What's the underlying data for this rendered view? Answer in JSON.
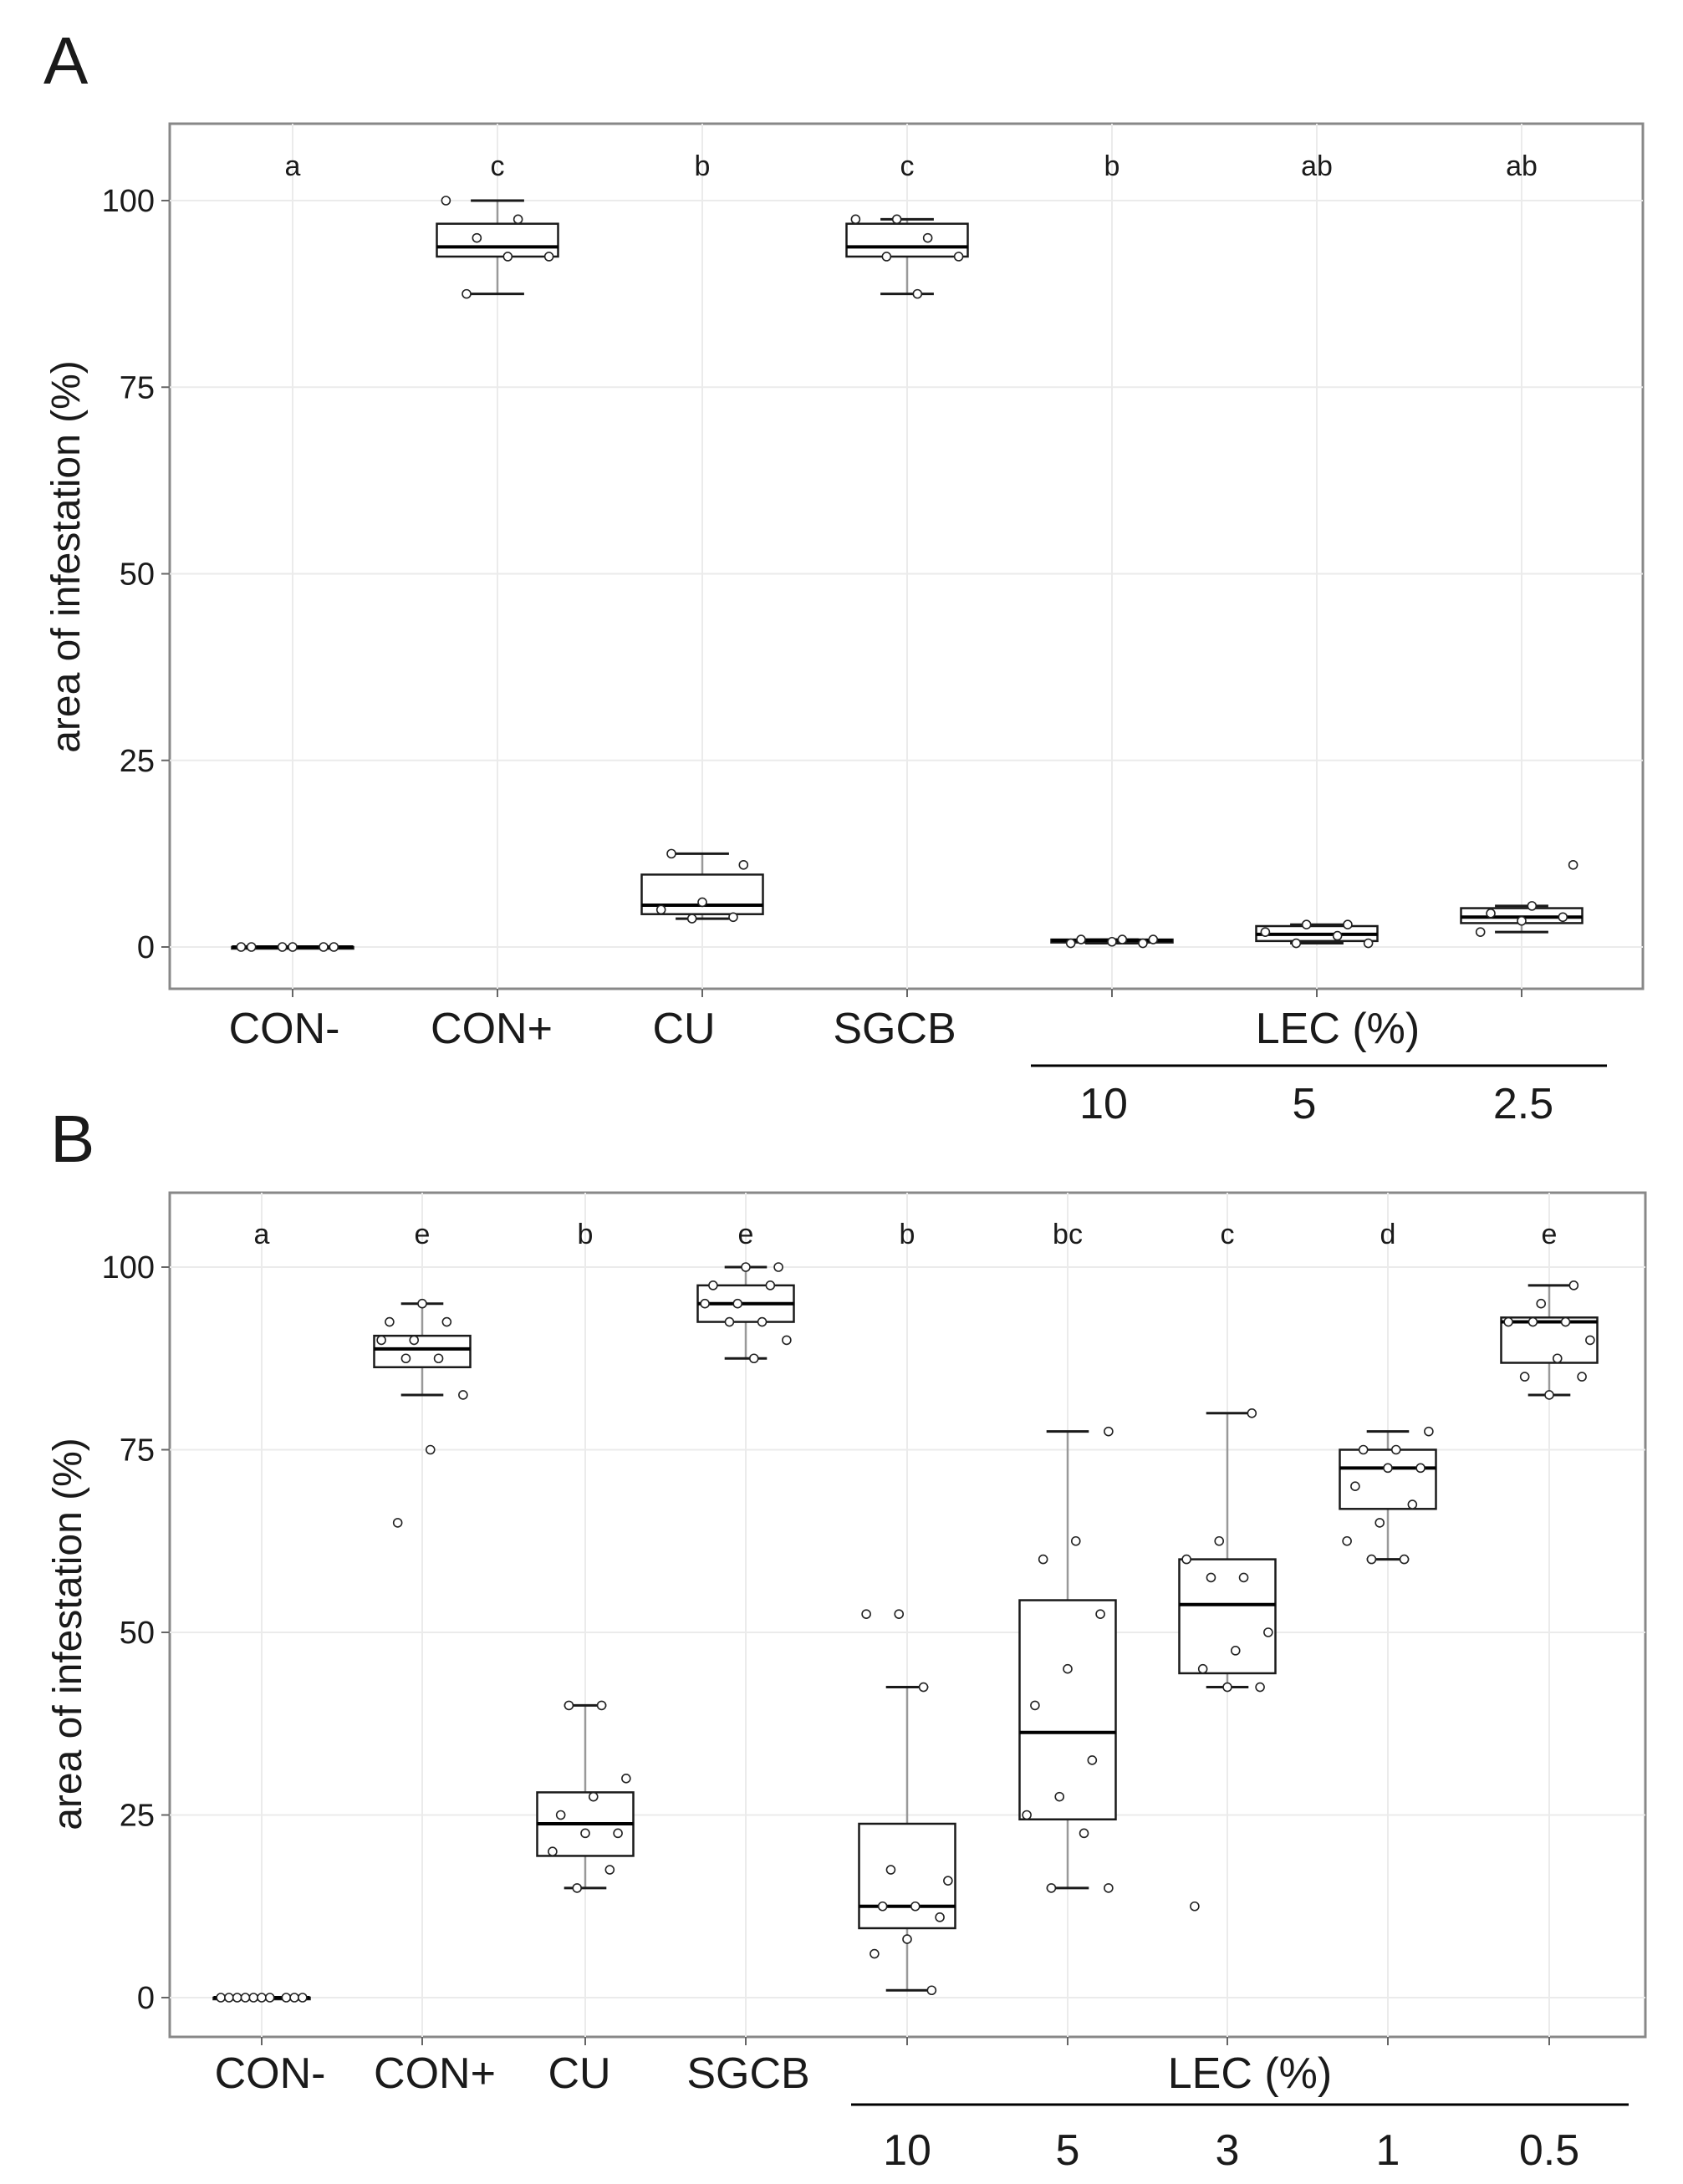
{
  "chart_data": [
    {
      "panel": "A",
      "type": "box",
      "ylabel": "area of infestation (%)",
      "ylim": [
        -5,
        110
      ],
      "yticks": [
        0,
        25,
        50,
        75,
        100
      ],
      "grid": true,
      "categories": [
        "CON-",
        "CON+",
        "CU",
        "SGCB",
        "10",
        "5",
        "2.5"
      ],
      "group_label": "LEC (%)",
      "group_members": [
        "10",
        "5",
        "2.5"
      ],
      "significance": [
        "a",
        "c",
        "b",
        "c",
        "b",
        "ab",
        "ab"
      ],
      "series": [
        {
          "name": "CON-",
          "whisker_low": 0,
          "q1": 0,
          "median": 0,
          "q3": 0,
          "whisker_high": 0,
          "points": [
            0,
            0,
            0,
            0,
            0,
            0
          ]
        },
        {
          "name": "CON+",
          "whisker_low": 87.5,
          "q1": 92.5,
          "median": 93.8,
          "q3": 96.9,
          "whisker_high": 100,
          "points": [
            87.5,
            92.5,
            92.5,
            95,
            97.5,
            100
          ]
        },
        {
          "name": "CU",
          "whisker_low": 3.8,
          "q1": 4.4,
          "median": 5.6,
          "q3": 9.7,
          "whisker_high": 12.5,
          "points": [
            3.8,
            4,
            5,
            6,
            11,
            12.5
          ]
        },
        {
          "name": "SGCB",
          "whisker_low": 87.5,
          "q1": 92.5,
          "median": 93.8,
          "q3": 96.9,
          "whisker_high": 97.5,
          "points": [
            87.5,
            92.5,
            92.5,
            95,
            97.5,
            97.5
          ]
        },
        {
          "name": "LEC 10",
          "whisker_low": 0.5,
          "q1": 0.6,
          "median": 0.9,
          "q3": 1,
          "whisker_high": 1,
          "points": [
            0.5,
            0.5,
            0.7,
            1,
            1,
            1
          ]
        },
        {
          "name": "LEC 5",
          "whisker_low": 0.5,
          "q1": 0.8,
          "median": 1.7,
          "q3": 2.8,
          "whisker_high": 3,
          "points": [
            0.5,
            0.5,
            1.5,
            2,
            3,
            3
          ]
        },
        {
          "name": "LEC 2.5",
          "whisker_low": 2,
          "q1": 3.2,
          "median": 4,
          "q3": 5.2,
          "whisker_high": 5.5,
          "points": [
            2,
            3.5,
            4,
            4.5,
            5.5,
            11
          ]
        }
      ]
    },
    {
      "panel": "B",
      "type": "box",
      "ylabel": "area of infestation (%)",
      "ylim": [
        -5,
        110
      ],
      "yticks": [
        0,
        25,
        50,
        75,
        100
      ],
      "grid": true,
      "categories": [
        "CON-",
        "CON+",
        "CU",
        "SGCB",
        "10",
        "5",
        "3",
        "1",
        "0.5"
      ],
      "group_label": "LEC (%)",
      "group_members": [
        "10",
        "5",
        "3",
        "1",
        "0.5"
      ],
      "significance": [
        "a",
        "e",
        "b",
        "e",
        "b",
        "bc",
        "c",
        "d",
        "e"
      ],
      "series": [
        {
          "name": "CON-",
          "whisker_low": 0,
          "q1": 0,
          "median": 0,
          "q3": 0,
          "whisker_high": 0,
          "points": [
            0,
            0,
            0,
            0,
            0,
            0,
            0,
            0,
            0,
            0
          ]
        },
        {
          "name": "CON+",
          "whisker_low": 82.5,
          "q1": 86.3,
          "median": 88.8,
          "q3": 90.6,
          "whisker_high": 95,
          "points": [
            65,
            75,
            82.5,
            87.5,
            87.5,
            90,
            90,
            92.5,
            92.5,
            95
          ]
        },
        {
          "name": "CU",
          "whisker_low": 15,
          "q1": 19.4,
          "median": 23.8,
          "q3": 28.1,
          "whisker_high": 40,
          "points": [
            15,
            17.5,
            20,
            22.5,
            22.5,
            25,
            27.5,
            30,
            40,
            40
          ]
        },
        {
          "name": "SGCB",
          "whisker_low": 87.5,
          "q1": 92.5,
          "median": 95,
          "q3": 97.5,
          "whisker_high": 100,
          "points": [
            87.5,
            90,
            92.5,
            92.5,
            95,
            95,
            97.5,
            97.5,
            100,
            100
          ]
        },
        {
          "name": "LEC 10",
          "whisker_low": 1,
          "q1": 9.5,
          "median": 12.5,
          "q3": 23.8,
          "whisker_high": 42.5,
          "points": [
            1,
            6,
            8,
            11,
            12.5,
            12.5,
            16,
            17.5,
            42.5,
            52.5,
            52.5
          ]
        },
        {
          "name": "LEC 5",
          "whisker_low": 15,
          "q1": 24.4,
          "median": 36.3,
          "q3": 54.4,
          "whisker_high": 77.5,
          "points": [
            15,
            15,
            22.5,
            25,
            27.5,
            32.5,
            40,
            45,
            52.5,
            60,
            62.5,
            77.5
          ]
        },
        {
          "name": "LEC 3",
          "whisker_low": 42.5,
          "q1": 44.4,
          "median": 53.8,
          "q3": 60,
          "whisker_high": 80,
          "points": [
            12.5,
            42.5,
            42.5,
            45,
            47.5,
            50,
            57.5,
            57.5,
            60,
            62.5,
            80
          ]
        },
        {
          "name": "LEC 1",
          "whisker_low": 60,
          "q1": 66.9,
          "median": 72.5,
          "q3": 75,
          "whisker_high": 77.5,
          "points": [
            60,
            60,
            62.5,
            65,
            67.5,
            70,
            72.5,
            72.5,
            75,
            75,
            77.5
          ]
        },
        {
          "name": "LEC 0.5",
          "whisker_low": 82.5,
          "q1": 86.9,
          "median": 92.5,
          "q3": 93.1,
          "whisker_high": 97.5,
          "points": [
            82.5,
            85,
            85,
            87.5,
            90,
            92.5,
            92.5,
            92.5,
            95,
            97.5
          ]
        }
      ]
    }
  ]
}
